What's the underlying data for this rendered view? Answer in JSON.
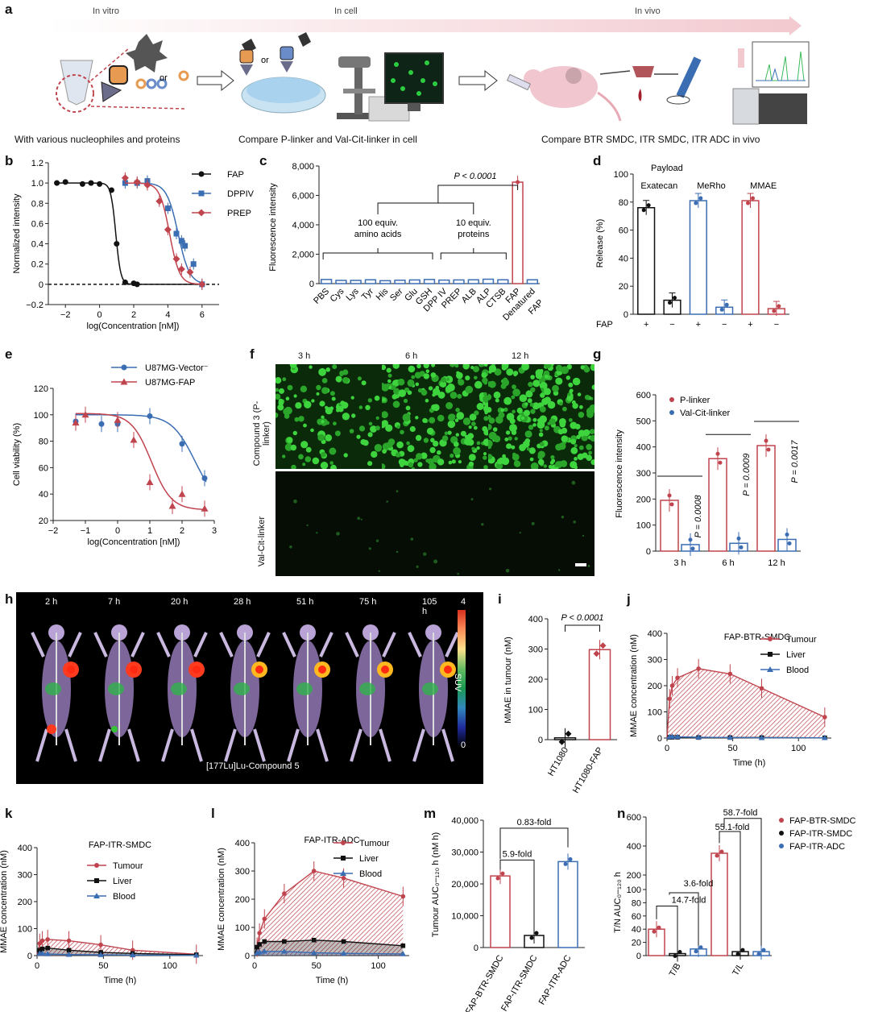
{
  "colors": {
    "fap": "#c0444e",
    "dppiv": "#3b6db3",
    "black": "#111111",
    "blue": "#3b6db3",
    "red": "#c0444e",
    "green": "#36c236"
  },
  "panel_a": {
    "letter": "a",
    "stages": [
      "In vitro",
      "In cell",
      "In vivo"
    ],
    "captions": [
      "With various nucleophiles and proteins",
      "Compare P-linker and Val-Cit-linker in cell",
      "Compare BTR SMDC, ITR SMDC, ITR ADC in vivo"
    ],
    "or_labels": [
      "or",
      "or"
    ]
  },
  "panel_f": {
    "letter": "f",
    "times": [
      "3 h",
      "6 h",
      "12 h"
    ],
    "row_labels": [
      "Compound 3\n(P-linker)",
      "Val-Cit-linker"
    ],
    "rows": [
      "Compound 3 (P-linker)",
      "Val-Cit-linker"
    ]
  },
  "panel_h": {
    "letter": "h",
    "times": [
      "2 h",
      "7 h",
      "20 h",
      "28 h",
      "51 h",
      "75 h",
      "105 h"
    ],
    "caption": "[177Lu]Lu-Compound 5",
    "colorbar": {
      "label": "SUV",
      "max": "4",
      "min": "0"
    }
  },
  "chart_data": [
    {
      "id": "b",
      "type": "line",
      "xlabel": "log(Concentration [nM])",
      "ylabel": "Normalized intensity",
      "xlim": [
        -3,
        7
      ],
      "ylim": [
        -0.2,
        1.2
      ],
      "x_ticks": [
        "−2",
        "0",
        "2",
        "4",
        "6"
      ],
      "y_ticks": [
        "−0.2",
        "0",
        "0.2",
        "0.4",
        "0.6",
        "0.8",
        "1.0",
        "1.2"
      ],
      "series": [
        {
          "name": "FAP",
          "color": "#111111",
          "marker": "circle",
          "x": [
            -2.5,
            -2.0,
            -1.0,
            -0.5,
            0.0,
            0.7,
            1.0,
            1.5,
            2.0,
            2.2
          ],
          "y": [
            1.0,
            1.01,
            0.99,
            1.0,
            0.99,
            0.93,
            0.4,
            0.02,
            0.01,
            0.0
          ]
        },
        {
          "name": "DPPIV",
          "color": "#3b6db3",
          "marker": "square",
          "x": [
            1.5,
            2.2,
            2.8,
            4.0,
            4.5,
            4.8,
            5.0,
            5.5,
            6.0
          ],
          "y": [
            1.0,
            1.0,
            1.02,
            0.75,
            0.5,
            0.43,
            0.38,
            0.2,
            0.0
          ]
        },
        {
          "name": "PREP",
          "color": "#c0444e",
          "marker": "diamond",
          "x": [
            1.5,
            2.2,
            2.8,
            3.5,
            4.0,
            4.5,
            4.8,
            5.3,
            6.0
          ],
          "y": [
            1.05,
            1.01,
            0.98,
            0.82,
            0.54,
            0.25,
            0.15,
            0.12,
            0.0
          ]
        }
      ]
    },
    {
      "id": "c",
      "type": "bar",
      "ylabel": "Fluorescence intensity",
      "ylim": [
        0,
        8000
      ],
      "y_ticks": [
        "0",
        "2,000",
        "4,000",
        "6,000",
        "8,000"
      ],
      "categories": [
        "PBS",
        "Cys",
        "Lys",
        "Tyr",
        "His",
        "Ser",
        "Glu",
        "GSH",
        "DPP IV",
        "PREP",
        "ALB",
        "ALP",
        "CTSB",
        "FAP",
        "Denatured FAP"
      ],
      "values": [
        280,
        220,
        220,
        260,
        200,
        230,
        250,
        280,
        240,
        250,
        260,
        300,
        260,
        6900,
        260
      ],
      "annotations": {
        "pvalue": "P < 0.0001",
        "group1": "100 equiv.\namino acids",
        "group2": "10 equiv.\nproteins"
      }
    },
    {
      "id": "d",
      "type": "bar",
      "ylabel": "Release (%)",
      "ylim": [
        0,
        100
      ],
      "y_ticks": [
        "0",
        "20",
        "40",
        "60",
        "80",
        "100"
      ],
      "legend_title": "Payload",
      "payloads": [
        "Exatecan",
        "MeRho",
        "MMAE"
      ],
      "fap_signs": [
        "+",
        "−",
        "+",
        "−",
        "+",
        "−"
      ],
      "fap_label": "FAP",
      "values": [
        76,
        10,
        81,
        5,
        81,
        4
      ],
      "bar_colors": [
        "#111111",
        "#111111",
        "#3b6db3",
        "#3b6db3",
        "#c0444e",
        "#c0444e"
      ]
    },
    {
      "id": "e",
      "type": "line",
      "xlabel": "log(Concentration [nM])",
      "ylabel": "Cell viability (%)",
      "xlim": [
        -2,
        3
      ],
      "ylim": [
        20,
        120
      ],
      "x_ticks": [
        "−2",
        "−1",
        "0",
        "1",
        "2",
        "3"
      ],
      "y_ticks": [
        "20",
        "40",
        "60",
        "80",
        "100",
        "120"
      ],
      "series": [
        {
          "name": "U87MG-Vector⁻",
          "color": "#3b6db3",
          "marker": "circle",
          "x": [
            -1.3,
            -0.5,
            0.0,
            1.0,
            2.0,
            2.7
          ],
          "y": [
            95,
            93,
            93,
            99,
            78,
            52
          ]
        },
        {
          "name": "U87MG-FAP",
          "color": "#c0444e",
          "marker": "triangle",
          "x": [
            -1.3,
            -1.0,
            0.0,
            0.5,
            1.0,
            1.7,
            2.0,
            2.7
          ],
          "y": [
            94,
            100,
            96,
            81,
            49,
            31,
            40,
            29
          ]
        }
      ]
    },
    {
      "id": "g",
      "type": "bar",
      "ylabel": "Fluorescence intensity",
      "ylim": [
        0,
        600
      ],
      "y_ticks": [
        "0",
        "100",
        "200",
        "300",
        "400",
        "500",
        "600"
      ],
      "categories": [
        "3 h",
        "6 h",
        "12 h"
      ],
      "series": [
        {
          "name": "P-linker",
          "values": [
            195,
            355,
            405
          ],
          "color": "#c0444e"
        },
        {
          "name": "Val-Cit-linker",
          "values": [
            25,
            30,
            45
          ],
          "color": "#3b6db3"
        }
      ],
      "pvalues": [
        "P = 0.0008",
        "P = 0.0009",
        "P = 0.0017"
      ]
    },
    {
      "id": "i",
      "type": "bar",
      "ylabel": "MMAE in tumour (nM)",
      "ylim": [
        0,
        400
      ],
      "y_ticks": [
        "0",
        "100",
        "200",
        "300",
        "400"
      ],
      "categories": [
        "HT1080",
        "HT1080-FAP"
      ],
      "values": [
        6,
        298
      ],
      "bar_colors": [
        "#111111",
        "#c0444e"
      ],
      "pvalue": "P < 0.0001"
    },
    {
      "id": "j",
      "type": "area",
      "title": "FAP-BTR-SMDC",
      "xlabel": "Time (h)",
      "ylabel": "MMAE concentration (nM)",
      "xlim": [
        0,
        125
      ],
      "ylim": [
        0,
        400
      ],
      "x_ticks": [
        "0",
        "50",
        "100"
      ],
      "y_ticks": [
        "0",
        "100",
        "200",
        "300",
        "400"
      ],
      "x": [
        0,
        2,
        4,
        8,
        24,
        48,
        72,
        120
      ],
      "series": [
        {
          "name": "Tumour",
          "values": [
            0,
            150,
            200,
            230,
            265,
            245,
            190,
            80
          ],
          "color": "#c0444e"
        },
        {
          "name": "Liver",
          "values": [
            0,
            3,
            3,
            3,
            2,
            2,
            2,
            1
          ],
          "color": "#111111"
        },
        {
          "name": "Blood",
          "values": [
            0,
            5,
            6,
            5,
            3,
            2,
            1,
            1
          ],
          "color": "#3b6db3"
        }
      ]
    },
    {
      "id": "k",
      "type": "area",
      "title": "FAP-ITR-SMDC",
      "xlabel": "Time (h)",
      "ylabel": "MMAE concentration (nM)",
      "xlim": [
        0,
        125
      ],
      "ylim": [
        0,
        400
      ],
      "x_ticks": [
        "0",
        "50",
        "100"
      ],
      "y_ticks": [
        "0",
        "100",
        "200",
        "300",
        "400"
      ],
      "x": [
        0,
        2,
        4,
        8,
        24,
        48,
        72,
        120
      ],
      "series": [
        {
          "name": "Tumour",
          "values": [
            0,
            45,
            55,
            60,
            55,
            40,
            20,
            5
          ],
          "color": "#c0444e"
        },
        {
          "name": "Liver",
          "values": [
            0,
            20,
            25,
            28,
            20,
            12,
            8,
            3
          ],
          "color": "#111111"
        },
        {
          "name": "Blood",
          "values": [
            0,
            8,
            8,
            6,
            4,
            3,
            2,
            1
          ],
          "color": "#3b6db3"
        }
      ]
    },
    {
      "id": "l",
      "type": "area",
      "title": "FAP-ITR-ADC",
      "xlabel": "Time (h)",
      "ylabel": "MMAE concentration (nM)",
      "xlim": [
        0,
        125
      ],
      "ylim": [
        0,
        400
      ],
      "x_ticks": [
        "0",
        "50",
        "100"
      ],
      "y_ticks": [
        "0",
        "100",
        "200",
        "300",
        "400"
      ],
      "x": [
        0,
        2,
        4,
        8,
        24,
        48,
        72,
        120
      ],
      "series": [
        {
          "name": "Tumour",
          "values": [
            0,
            30,
            80,
            130,
            220,
            300,
            275,
            210
          ],
          "color": "#c0444e"
        },
        {
          "name": "Liver",
          "values": [
            0,
            30,
            40,
            50,
            50,
            55,
            50,
            35
          ],
          "color": "#111111"
        },
        {
          "name": "Blood",
          "values": [
            0,
            10,
            12,
            15,
            15,
            10,
            8,
            6
          ],
          "color": "#3b6db3"
        }
      ]
    },
    {
      "id": "m",
      "type": "bar",
      "ylabel": "Tumour AUC₀–₁₂₀ h (nM h)",
      "ylim": [
        0,
        40000
      ],
      "y_ticks": [
        "0",
        "10,000",
        "20,000",
        "30,000",
        "40,000"
      ],
      "categories": [
        "FAP-BTR-SMDC",
        "FAP-ITR-SMDC",
        "FAP-ITR-ADC"
      ],
      "values": [
        22500,
        3800,
        27000
      ],
      "bar_colors": [
        "#c0444e",
        "#111111",
        "#3b6db3"
      ],
      "fold_labels": [
        "5.9-fold",
        "0.83-fold"
      ]
    },
    {
      "id": "n",
      "type": "bar",
      "ylabel": "T/N AUC₀–₁₂₀ h",
      "y_ticks": [
        "0",
        "20",
        "40",
        "60",
        "80",
        "100",
        "200",
        "400",
        "600"
      ],
      "groups": [
        "T/B",
        "T/L"
      ],
      "series": [
        {
          "name": "FAP-BTR-SMDC",
          "values": [
            40,
            350
          ],
          "color": "#c0444e"
        },
        {
          "name": "FAP-ITR-SMDC",
          "values": [
            3,
            6
          ],
          "color": "#111111"
        },
        {
          "name": "FAP-ITR-ADC",
          "values": [
            10,
            6
          ],
          "color": "#3b6db3"
        }
      ],
      "fold_labels": [
        "3.6-fold",
        "14.7-fold",
        "55.1-fold",
        "58.7-fold"
      ]
    }
  ]
}
